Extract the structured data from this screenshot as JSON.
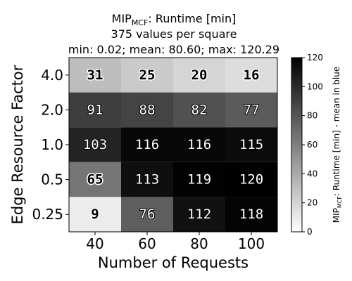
{
  "chart_data": {
    "type": "heatmap",
    "title": {
      "main": "MIP",
      "main_sub": "MCF",
      "main_rest": ": Runtime [min]",
      "line2": "375 values per square",
      "line3": "min: 0.02; mean: 80.60; max: 120.29"
    },
    "xlabel": "Number of Requests",
    "ylabel": "Edge Resource Factor",
    "x_categories": [
      "40",
      "60",
      "80",
      "100"
    ],
    "y_categories": [
      "4.0",
      "2.0",
      "1.0",
      "0.5",
      "0.25"
    ],
    "values": [
      [
        31,
        25,
        20,
        16
      ],
      [
        91,
        88,
        82,
        77
      ],
      [
        103,
        116,
        116,
        115
      ],
      [
        65,
        113,
        119,
        120
      ],
      [
        9,
        76,
        112,
        118
      ]
    ],
    "colormap": "gray_r",
    "vmin": 0,
    "vmax": 120,
    "colorbar": {
      "ticks": [
        "0",
        "20",
        "40",
        "60",
        "80",
        "100",
        "120"
      ],
      "label_main": "MIP",
      "label_sub": "MCF",
      "label_rest": ": Runtime [min] - mean in blue"
    }
  }
}
